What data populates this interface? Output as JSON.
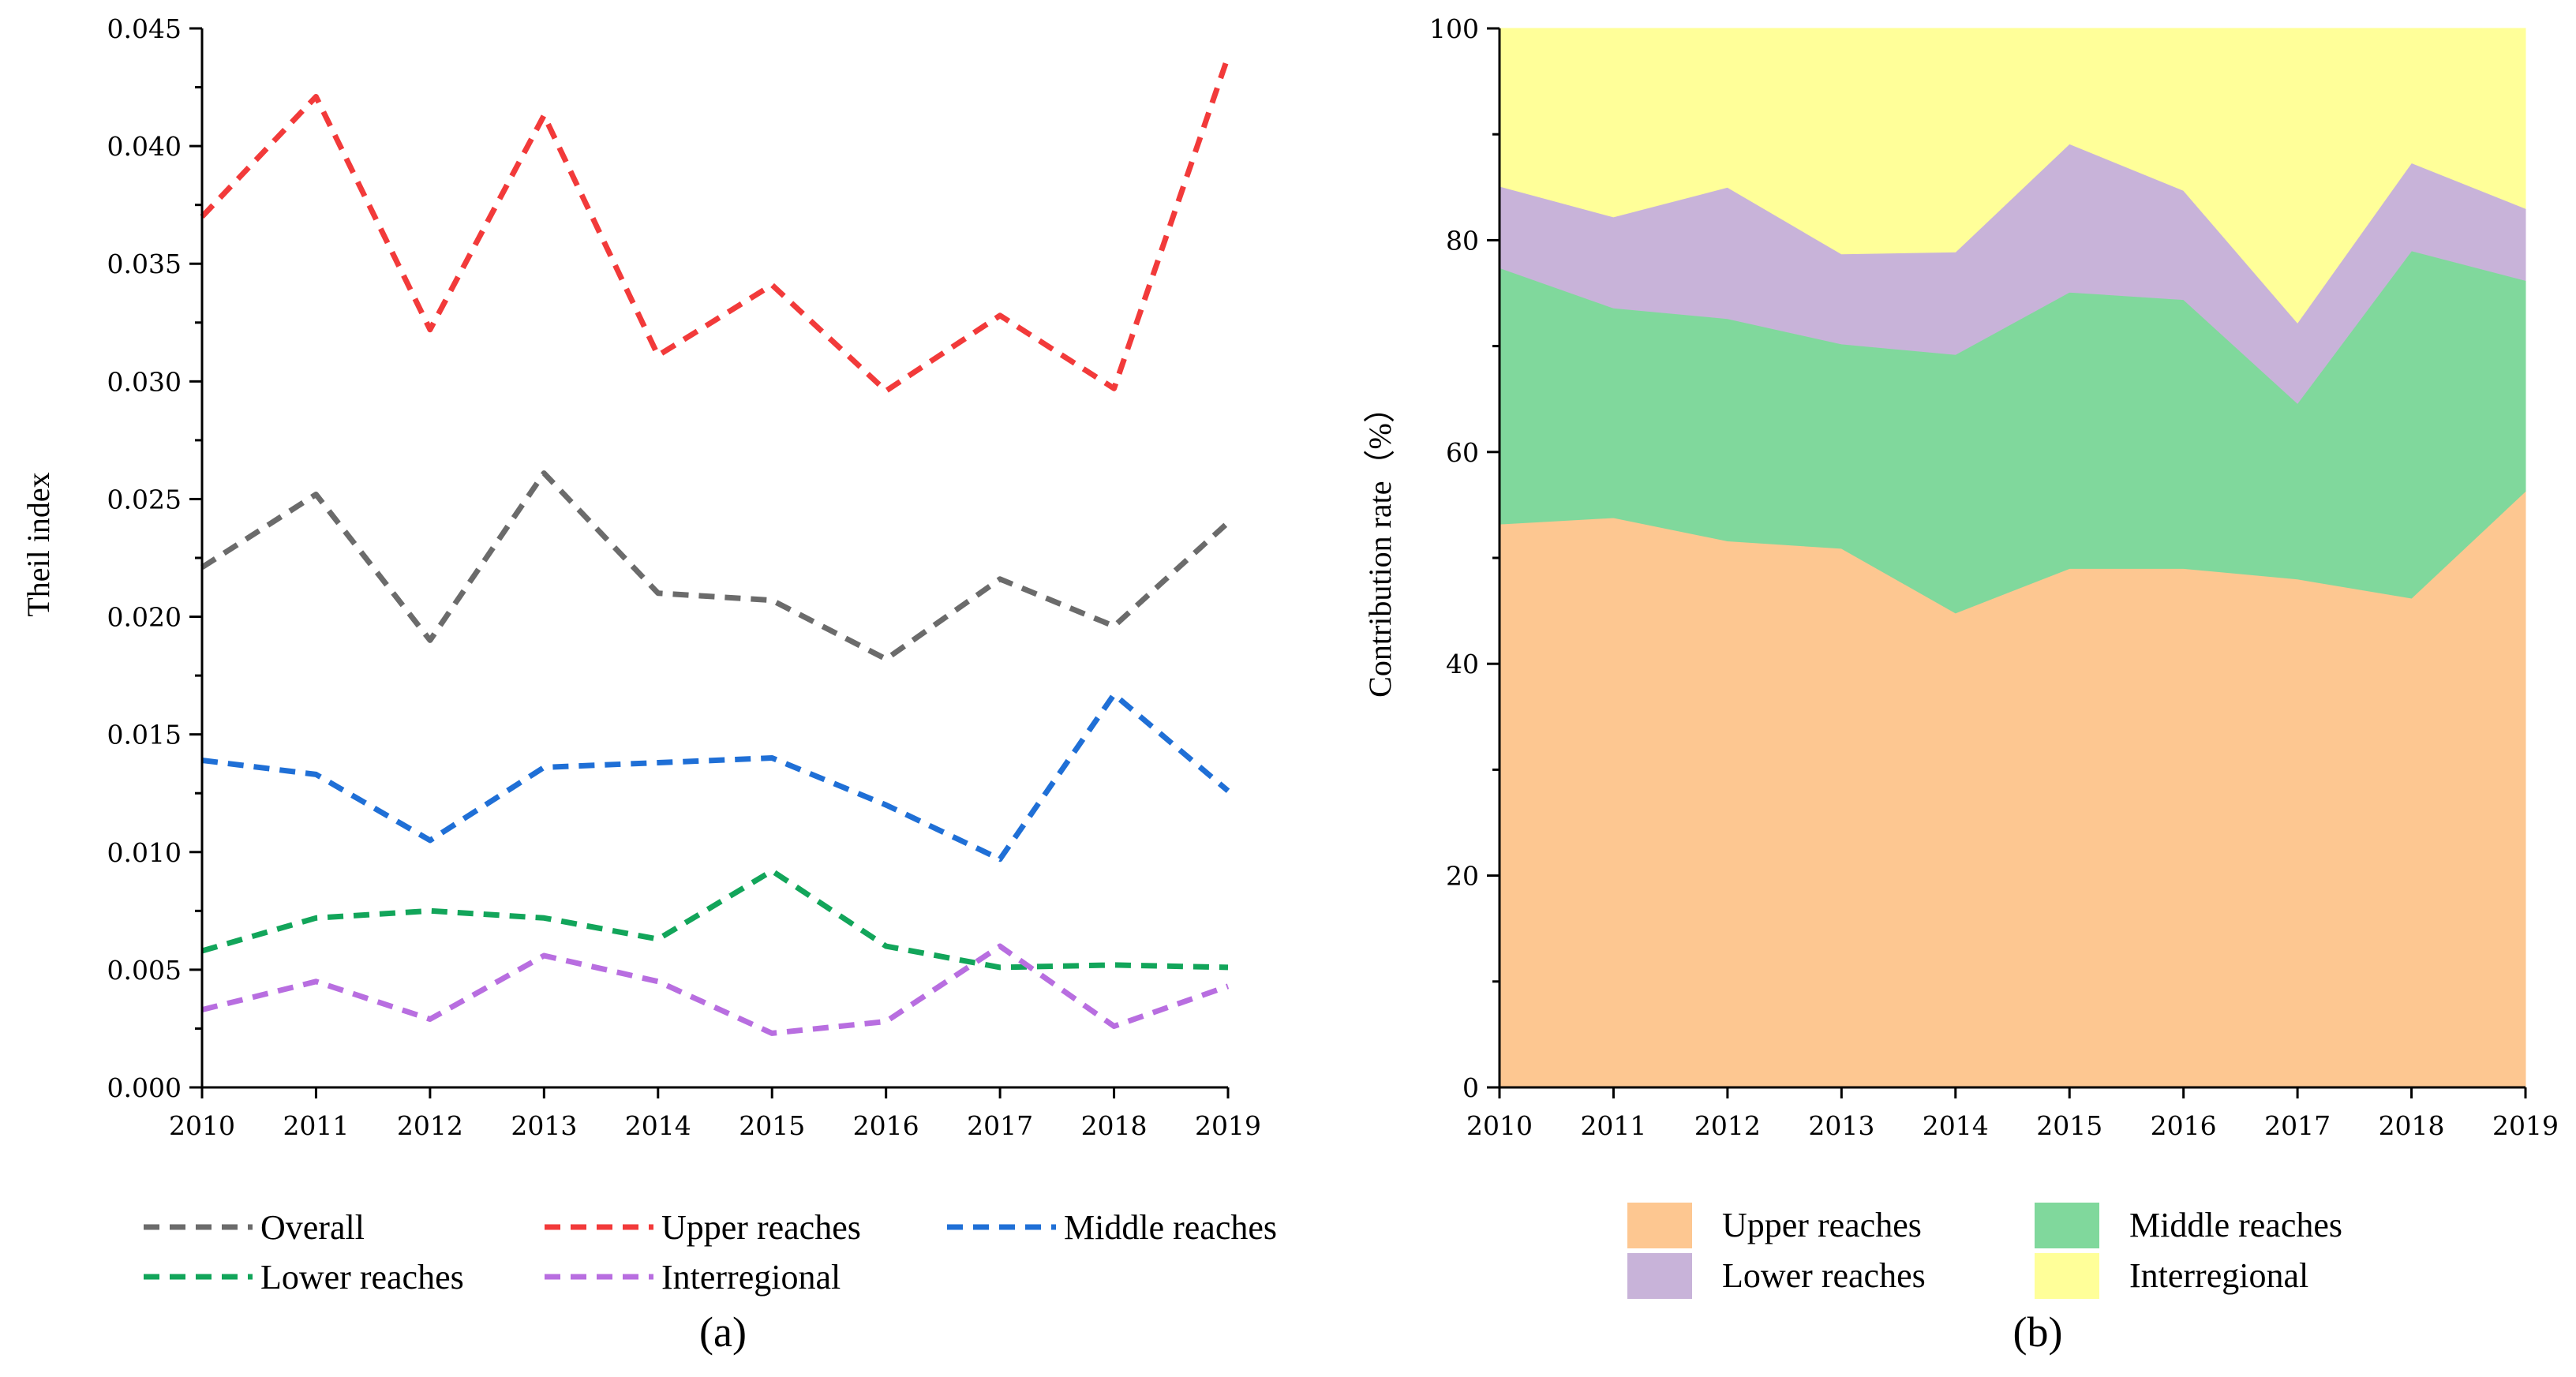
{
  "chart_data": [
    {
      "type": "line",
      "caption": "(a)",
      "ylabel": "Theil index",
      "xlabel": "",
      "ylim": [
        0,
        0.045
      ],
      "yticks": [
        "0.000",
        "0.005",
        "0.010",
        "0.015",
        "0.020",
        "0.025",
        "0.030",
        "0.035",
        "0.040",
        "0.045"
      ],
      "x": [
        "2010",
        "2011",
        "2012",
        "2013",
        "2014",
        "2015",
        "2016",
        "2017",
        "2018",
        "2019"
      ],
      "series": [
        {
          "name": "Overall",
          "color": "#6b6b6b",
          "values": [
            0.0221,
            0.0252,
            0.019,
            0.0261,
            0.021,
            0.0207,
            0.0182,
            0.0216,
            0.0196,
            0.024
          ]
        },
        {
          "name": "Upper reaches",
          "color": "#f23a3a",
          "values": [
            0.037,
            0.0421,
            0.0322,
            0.0413,
            0.0311,
            0.0341,
            0.0296,
            0.0328,
            0.0297,
            0.0438
          ]
        },
        {
          "name": "Middle reaches",
          "color": "#1f6fd6",
          "values": [
            0.0139,
            0.0133,
            0.0105,
            0.0136,
            0.0138,
            0.014,
            0.012,
            0.0097,
            0.0167,
            0.0126
          ]
        },
        {
          "name": "Lower reaches",
          "color": "#12a55a",
          "values": [
            0.0058,
            0.0072,
            0.0075,
            0.0072,
            0.0063,
            0.0092,
            0.006,
            0.0051,
            0.0052,
            0.0051
          ]
        },
        {
          "name": "Interregional",
          "color": "#b86ee0",
          "values": [
            0.0033,
            0.0045,
            0.0029,
            0.0056,
            0.0045,
            0.0023,
            0.0028,
            0.006,
            0.0026,
            0.0043
          ]
        }
      ],
      "legend_placement": "bottom"
    },
    {
      "type": "area",
      "stacked": true,
      "caption": "(b)",
      "ylabel": "Contribution rate（%）",
      "xlabel": "",
      "ylim": [
        0,
        100
      ],
      "yticks": [
        "0",
        "20",
        "40",
        "60",
        "80",
        "100"
      ],
      "x": [
        "2010",
        "2011",
        "2012",
        "2013",
        "2014",
        "2015",
        "2016",
        "2017",
        "2018",
        "2019"
      ],
      "series": [
        {
          "name": "Upper reaches",
          "color": "#fdc791",
          "values": [
            53.2,
            53.8,
            51.6,
            50.9,
            44.8,
            49.0,
            49.0,
            48.0,
            46.2,
            56.3
          ]
        },
        {
          "name": "Middle reaches",
          "color": "#80d89c",
          "values": [
            24.2,
            19.8,
            21.0,
            19.3,
            24.4,
            26.1,
            25.4,
            16.6,
            32.8,
            19.9
          ]
        },
        {
          "name": "Lower reaches",
          "color": "#c8b3d9",
          "values": [
            7.7,
            8.6,
            12.4,
            8.5,
            9.7,
            14.0,
            10.3,
            7.6,
            8.3,
            6.8
          ]
        },
        {
          "name": "Interregional",
          "color": "#ffff99",
          "values": [
            14.9,
            17.8,
            15.0,
            21.3,
            21.1,
            10.9,
            15.3,
            27.8,
            12.7,
            17.0
          ]
        }
      ],
      "legend_placement": "bottom"
    }
  ]
}
